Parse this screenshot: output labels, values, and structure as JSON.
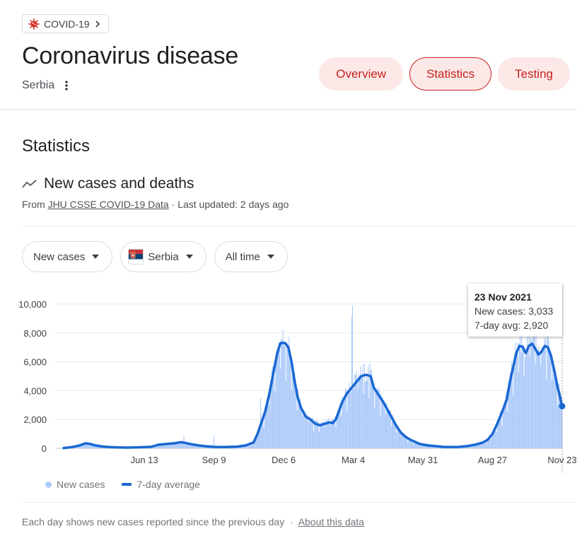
{
  "topic_chip": {
    "label": "COVID-19",
    "icon": "virus-icon"
  },
  "header": {
    "title": "Coronavirus disease",
    "location": "Serbia",
    "tabs": [
      {
        "label": "Overview",
        "active": false
      },
      {
        "label": "Statistics",
        "active": true
      },
      {
        "label": "Testing",
        "active": false
      }
    ]
  },
  "section": {
    "title": "Statistics"
  },
  "card": {
    "title": "New cases and deaths",
    "source_prefix": "From",
    "source_link": "JHU CSSE COVID-19 Data",
    "separator": "·",
    "updated": "Last updated: 2 days ago"
  },
  "filters": {
    "metric": "New cases",
    "region": "Serbia",
    "range": "All time"
  },
  "tooltip": {
    "date": "23 Nov 2021",
    "new_cases": "New cases: 3,033",
    "avg": "7-day avg: 2,920"
  },
  "legend": {
    "bars": "New cases",
    "line": "7-day average"
  },
  "footer": {
    "note": "Each day shows new cases reported since the previous day",
    "separator": "·",
    "link": "About this data"
  },
  "colors": {
    "accent": "#c5221f",
    "tab_bg": "#fce8e6",
    "bar": "#aecbfa",
    "line": "#1967d2"
  },
  "chart_data": {
    "type": "bar",
    "ylim": [
      0,
      10000
    ],
    "y_ticks": [
      "10,000",
      "8,000",
      "6,000",
      "4,000",
      "2,000",
      "0"
    ],
    "y_tick_values": [
      10000,
      8000,
      6000,
      4000,
      2000,
      0
    ],
    "x_ticks": [
      "Jun 13",
      "Sep 9",
      "Dec 6",
      "Mar 4",
      "May 31",
      "Aug 27",
      "Nov 23"
    ],
    "x_tick_days": [
      102,
      190,
      278,
      366,
      454,
      542,
      630
    ],
    "x_range_days": [
      0,
      630
    ],
    "avg_points": [
      [
        0,
        20
      ],
      [
        10,
        80
      ],
      [
        20,
        200
      ],
      [
        28,
        350
      ],
      [
        34,
        300
      ],
      [
        40,
        200
      ],
      [
        50,
        120
      ],
      [
        60,
        80
      ],
      [
        70,
        60
      ],
      [
        80,
        50
      ],
      [
        90,
        60
      ],
      [
        100,
        80
      ],
      [
        110,
        100
      ],
      [
        120,
        250
      ],
      [
        130,
        300
      ],
      [
        140,
        350
      ],
      [
        148,
        420
      ],
      [
        153,
        380
      ],
      [
        160,
        300
      ],
      [
        170,
        200
      ],
      [
        180,
        140
      ],
      [
        190,
        100
      ],
      [
        200,
        90
      ],
      [
        210,
        100
      ],
      [
        220,
        120
      ],
      [
        230,
        200
      ],
      [
        240,
        400
      ],
      [
        245,
        1000
      ],
      [
        250,
        1800
      ],
      [
        255,
        2600
      ],
      [
        260,
        3800
      ],
      [
        265,
        5200
      ],
      [
        270,
        6600
      ],
      [
        274,
        7300
      ],
      [
        280,
        7300
      ],
      [
        284,
        7000
      ],
      [
        288,
        6000
      ],
      [
        292,
        4600
      ],
      [
        296,
        3500
      ],
      [
        300,
        2800
      ],
      [
        306,
        2200
      ],
      [
        312,
        2000
      ],
      [
        318,
        1700
      ],
      [
        324,
        1600
      ],
      [
        330,
        1700
      ],
      [
        336,
        1800
      ],
      [
        340,
        1750
      ],
      [
        344,
        2000
      ],
      [
        348,
        2600
      ],
      [
        352,
        3200
      ],
      [
        358,
        3800
      ],
      [
        364,
        4200
      ],
      [
        370,
        4600
      ],
      [
        376,
        5000
      ],
      [
        382,
        5100
      ],
      [
        388,
        5000
      ],
      [
        392,
        4200
      ],
      [
        398,
        3700
      ],
      [
        404,
        3200
      ],
      [
        410,
        2600
      ],
      [
        416,
        2000
      ],
      [
        420,
        1600
      ],
      [
        426,
        1100
      ],
      [
        432,
        800
      ],
      [
        438,
        600
      ],
      [
        444,
        450
      ],
      [
        450,
        300
      ],
      [
        460,
        200
      ],
      [
        470,
        150
      ],
      [
        480,
        100
      ],
      [
        490,
        90
      ],
      [
        500,
        100
      ],
      [
        510,
        150
      ],
      [
        520,
        250
      ],
      [
        530,
        400
      ],
      [
        536,
        600
      ],
      [
        542,
        1000
      ],
      [
        548,
        1700
      ],
      [
        554,
        2500
      ],
      [
        560,
        3400
      ],
      [
        564,
        4600
      ],
      [
        568,
        5600
      ],
      [
        572,
        6600
      ],
      [
        576,
        7100
      ],
      [
        580,
        7050
      ],
      [
        584,
        6600
      ],
      [
        588,
        7100
      ],
      [
        592,
        7250
      ],
      [
        596,
        6900
      ],
      [
        600,
        6500
      ],
      [
        604,
        6700
      ],
      [
        608,
        7100
      ],
      [
        612,
        7000
      ],
      [
        616,
        6400
      ],
      [
        620,
        5400
      ],
      [
        624,
        4300
      ],
      [
        628,
        3400
      ],
      [
        630,
        2920
      ]
    ],
    "tooltip_day": 630,
    "tooltip_value": 2920
  }
}
